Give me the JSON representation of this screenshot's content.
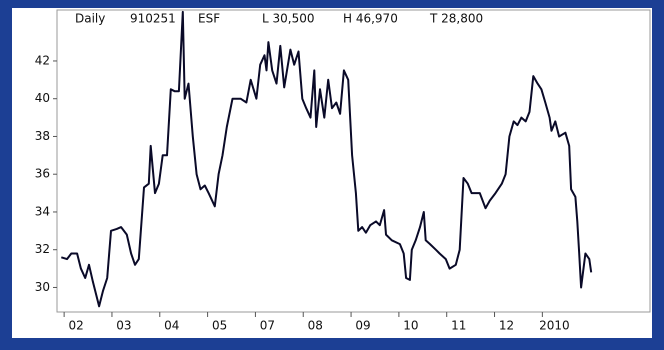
{
  "chart_data": {
    "type": "line",
    "header": [
      "Daily",
      "910251",
      "ESF",
      "L 30,500",
      "H 46,970",
      "T 28,800"
    ],
    "x": [
      -0.31,
      -0.19,
      -0.1,
      0.02,
      0.1,
      0.19,
      0.27,
      0.35,
      0.48,
      0.56,
      0.65,
      0.73,
      0.85,
      0.94,
      1.06,
      1.15,
      1.23,
      1.31,
      1.42,
      1.52,
      1.56,
      1.65,
      1.73,
      1.81,
      1.9,
      1.98,
      2.06,
      2.15,
      2.23,
      2.27,
      2.35,
      2.44,
      2.52,
      2.6,
      2.69,
      2.77,
      2.9,
      2.98,
      3.06,
      3.15,
      3.27,
      3.44,
      3.56,
      3.65,
      3.77,
      3.85,
      3.94,
      3.98,
      4.02,
      4.1,
      4.19,
      4.27,
      4.35,
      4.48,
      4.56,
      4.65,
      4.73,
      4.81,
      4.9,
      4.98,
      5.02,
      5.1,
      5.19,
      5.27,
      5.35,
      5.44,
      5.52,
      5.6,
      5.69,
      5.77,
      5.85,
      5.9,
      5.98,
      6.06,
      6.15,
      6.27,
      6.35,
      6.44,
      6.48,
      6.6,
      6.77,
      6.85,
      6.9,
      6.98,
      7.02,
      7.1,
      7.19,
      7.27,
      7.31,
      7.4,
      7.52,
      7.6,
      7.73,
      7.81,
      7.94,
      8.02,
      8.1,
      8.19,
      8.27,
      8.44,
      8.56,
      8.65,
      8.77,
      8.9,
      8.98,
      9.06,
      9.15,
      9.23,
      9.31,
      9.4,
      9.48,
      9.56,
      9.65,
      9.73,
      9.81,
      9.9,
      9.94,
      10.02,
      10.1,
      10.23,
      10.31,
      10.35,
      10.44,
      10.48,
      10.52,
      10.56,
      10.65,
      10.73,
      10.77
    ],
    "values": [
      31.6,
      31.5,
      31.8,
      31.8,
      31.0,
      30.5,
      31.2,
      30.3,
      29.0,
      29.8,
      30.5,
      33.0,
      33.1,
      33.2,
      32.8,
      31.8,
      31.2,
      31.5,
      35.3,
      35.5,
      37.5,
      35.0,
      35.5,
      37.0,
      37.0,
      40.5,
      40.4,
      40.4,
      44.6,
      40.0,
      40.8,
      38.0,
      36.0,
      35.2,
      35.4,
      35.0,
      34.3,
      36.0,
      37.0,
      38.5,
      40.0,
      40.0,
      39.8,
      41.0,
      40.0,
      41.8,
      42.3,
      41.5,
      43.0,
      41.5,
      40.8,
      42.8,
      40.6,
      42.6,
      41.8,
      42.5,
      40.0,
      39.5,
      39.0,
      41.5,
      38.5,
      40.5,
      39.0,
      41.0,
      39.5,
      39.8,
      39.2,
      41.5,
      41.0,
      37.0,
      35.0,
      33.0,
      33.2,
      32.9,
      33.3,
      33.5,
      33.3,
      34.1,
      32.8,
      32.5,
      32.3,
      31.8,
      30.5,
      30.4,
      32.0,
      32.5,
      33.2,
      34.0,
      32.5,
      32.3,
      32.0,
      31.8,
      31.5,
      31.0,
      31.2,
      32.0,
      35.8,
      35.5,
      35.0,
      35.0,
      34.2,
      34.6,
      35.0,
      35.5,
      36.0,
      38.0,
      38.8,
      38.6,
      39.0,
      38.8,
      39.3,
      41.2,
      40.8,
      40.5,
      39.8,
      39.0,
      38.3,
      38.8,
      38.0,
      38.2,
      37.5,
      35.2,
      34.8,
      33.5,
      31.8,
      30.0,
      31.8,
      31.5,
      30.8
    ],
    "color": "#0a0a28",
    "xlim": [
      -0.4,
      12
    ],
    "ylim": [
      28.7,
      44.7
    ],
    "xticks": [
      {
        "value": 0,
        "label": "02"
      },
      {
        "value": 1,
        "label": "03"
      },
      {
        "value": 2,
        "label": "04"
      },
      {
        "value": 3,
        "label": "05"
      },
      {
        "value": 4,
        "label": "07"
      },
      {
        "value": 5,
        "label": "08"
      },
      {
        "value": 6,
        "label": "09"
      },
      {
        "value": 7,
        "label": "10"
      },
      {
        "value": 8,
        "label": "11"
      },
      {
        "value": 9,
        "label": "12"
      },
      {
        "value": 10,
        "label": "2010"
      }
    ],
    "yticks": [
      30,
      32,
      34,
      36,
      38,
      40,
      42
    ]
  }
}
